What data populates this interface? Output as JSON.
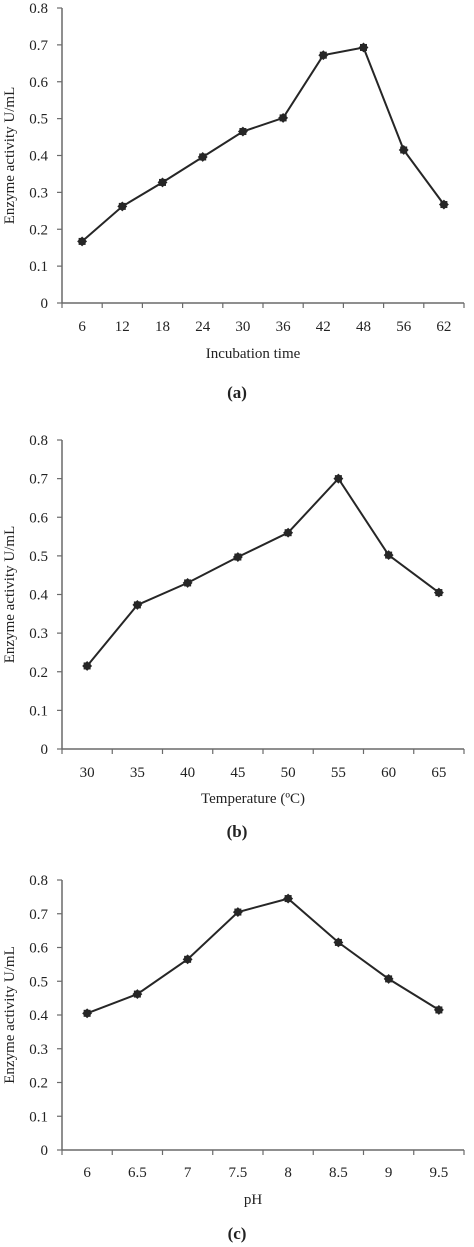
{
  "chart_data": [
    {
      "type": "line",
      "panel_label": "(a)",
      "xlabel": "Incubation  time",
      "ylabel": "Enzyme activity U/mL",
      "categories": [
        "6",
        "12",
        "18",
        "24",
        "30",
        "36",
        "42",
        "48",
        "56",
        "62"
      ],
      "values": [
        0.167,
        0.262,
        0.327,
        0.396,
        0.465,
        0.502,
        0.672,
        0.693,
        0.415,
        0.267
      ],
      "ylim": [
        0,
        0.8
      ],
      "yticks": [
        "0",
        "0.1",
        "0.2",
        "0.3",
        "0.4",
        "0.5",
        "0.6",
        "0.7",
        "0.8"
      ],
      "grid": false,
      "line_color": "#262626"
    },
    {
      "type": "line",
      "panel_label": "(b)",
      "xlabel": "Temperature (ºC)",
      "ylabel": "Enzyme activity U/mL",
      "categories": [
        "30",
        "35",
        "40",
        "45",
        "50",
        "55",
        "60",
        "65"
      ],
      "values": [
        0.215,
        0.373,
        0.43,
        0.497,
        0.56,
        0.7,
        0.502,
        0.405
      ],
      "ylim": [
        0,
        0.8
      ],
      "yticks": [
        "0",
        "0.1",
        "0.2",
        "0.3",
        "0.4",
        "0.5",
        "0.6",
        "0.7",
        "0.8"
      ],
      "grid": false,
      "line_color": "#262626"
    },
    {
      "type": "line",
      "panel_label": "(c)",
      "xlabel": "pH",
      "ylabel": "Enzyme activity U/mL",
      "categories": [
        "6",
        "6.5",
        "7",
        "7.5",
        "8",
        "8.5",
        "9",
        "9.5"
      ],
      "values": [
        0.405,
        0.462,
        0.565,
        0.705,
        0.745,
        0.615,
        0.507,
        0.415
      ],
      "ylim": [
        0,
        0.8
      ],
      "yticks": [
        "0",
        "0.1",
        "0.2",
        "0.3",
        "0.4",
        "0.5",
        "0.6",
        "0.7",
        "0.8"
      ],
      "grid": false,
      "line_color": "#262626"
    }
  ]
}
